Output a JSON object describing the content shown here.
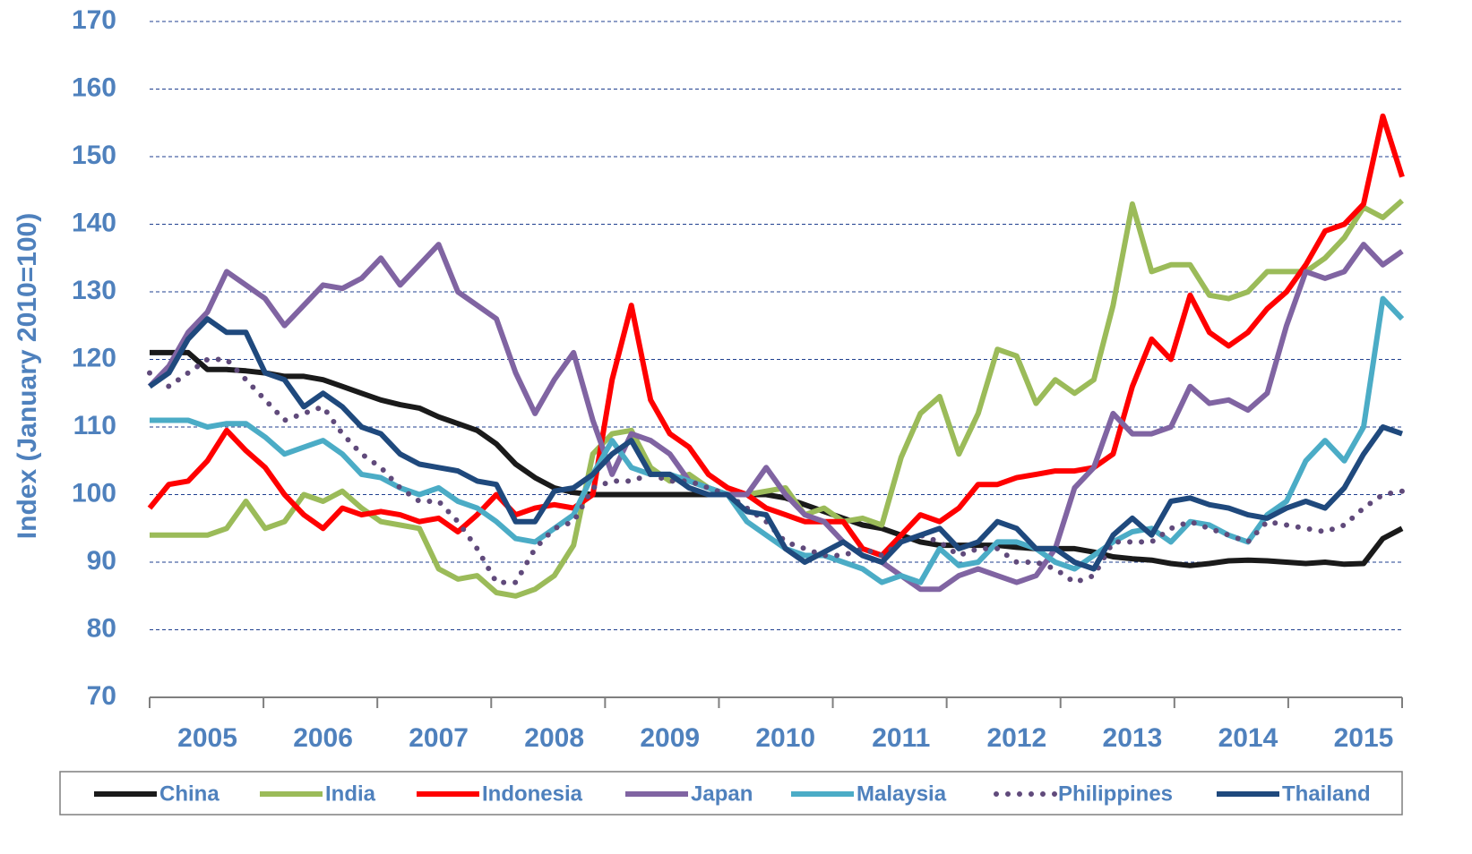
{
  "chart_data": {
    "type": "line",
    "y_label": "Index (January 2010=100)",
    "categories": [
      null,
      null,
      null,
      "2005",
      null,
      null,
      null,
      null,
      null,
      "2006",
      null,
      null,
      null,
      null,
      null,
      "2007",
      null,
      null,
      null,
      null,
      null,
      "2008",
      null,
      null,
      null,
      null,
      null,
      "2009",
      null,
      null,
      null,
      null,
      null,
      "2010",
      null,
      null,
      null,
      null,
      null,
      "2011",
      null,
      null,
      null,
      null,
      null,
      "2012",
      null,
      null,
      null,
      null,
      null,
      "2013",
      null,
      null,
      null,
      null,
      null,
      "2014",
      null,
      null,
      null,
      null,
      null,
      "2015",
      null,
      null
    ],
    "ylim": [
      70,
      170
    ],
    "yticks": [
      70,
      80,
      90,
      100,
      110,
      120,
      130,
      140,
      150,
      160,
      170
    ],
    "grid": true,
    "legend": "bottom",
    "series": [
      {
        "name": "China",
        "color": "#1a1a1a",
        "values": [
          121,
          121,
          121,
          118.5,
          118.5,
          118.3,
          118,
          117.5,
          117.5,
          117,
          116,
          115,
          114,
          113.3,
          112.8,
          111.5,
          110.5,
          109.5,
          107.5,
          104.5,
          102.5,
          101,
          100.3,
          100,
          100,
          100,
          100,
          100,
          100,
          100,
          100,
          100,
          100,
          99.5,
          98.5,
          97.5,
          96.5,
          95.5,
          95,
          94,
          93,
          92.5,
          92.5,
          92.5,
          92.5,
          92.2,
          92,
          92,
          92,
          91.5,
          90.8,
          90.5,
          90.3,
          89.8,
          89.5,
          89.8,
          90.2,
          90.3,
          90.2,
          90,
          89.8,
          90,
          89.7,
          89.8,
          93.5,
          95
        ]
      },
      {
        "name": "India",
        "color": "#9bbb59",
        "values": [
          94,
          94,
          94,
          94,
          95,
          99,
          95,
          96,
          100,
          99,
          100.5,
          98,
          96,
          95.5,
          95,
          89,
          87.5,
          88,
          85.5,
          85,
          86,
          88,
          92.5,
          106,
          109,
          109.5,
          104,
          102,
          103,
          101,
          100,
          100,
          100.5,
          101,
          97,
          98,
          96,
          96.5,
          95.5,
          105.5,
          112,
          114.5,
          106,
          112,
          121.5,
          120.5,
          113.5,
          117,
          115,
          117,
          128,
          143,
          133,
          134,
          134,
          129.5,
          129,
          130,
          133,
          133,
          133,
          135,
          138,
          142.5,
          141,
          143.5
        ]
      },
      {
        "name": "Indonesia",
        "color": "#ff0000",
        "values": [
          98,
          101.5,
          102,
          105,
          109.5,
          106.5,
          104,
          100,
          97,
          95,
          98,
          97,
          97.5,
          97,
          96,
          96.5,
          94.5,
          97,
          100,
          97,
          98,
          98.5,
          98,
          100,
          117,
          128,
          114,
          109,
          107,
          103,
          101,
          100,
          98,
          97,
          96,
          96,
          96,
          92,
          91,
          94,
          97,
          96,
          98,
          101.5,
          101.5,
          102.5,
          103,
          103.5,
          103.5,
          104,
          106,
          116,
          123,
          120,
          129.5,
          124,
          122,
          124,
          127.5,
          130,
          134,
          139,
          140,
          143,
          156,
          147
        ]
      },
      {
        "name": "Japan",
        "color": "#8064a2",
        "values": [
          116,
          119,
          124,
          127,
          133,
          131,
          129,
          125,
          128,
          131,
          130.5,
          132,
          135,
          131,
          134,
          137,
          130,
          128,
          126,
          118,
          112,
          117,
          121,
          111,
          103,
          109,
          108,
          106,
          102,
          101,
          100,
          100,
          104,
          100,
          97,
          96,
          93,
          91,
          90,
          88,
          86,
          86,
          88,
          89,
          88,
          87,
          88,
          92,
          101,
          104,
          112,
          109,
          109,
          110,
          116,
          113.5,
          114,
          112.5,
          115,
          125,
          133,
          132,
          133,
          137,
          134,
          136
        ]
      },
      {
        "name": "Malaysia",
        "color": "#4bacc6",
        "values": [
          111,
          111,
          111,
          110,
          110.5,
          110.5,
          108.5,
          106,
          107,
          108,
          106,
          103,
          102.5,
          101,
          100,
          101,
          99,
          98,
          96,
          93.5,
          93,
          95,
          97,
          103,
          108,
          104,
          103,
          103,
          102,
          101,
          100,
          96,
          94,
          92,
          91,
          91,
          90,
          89,
          87,
          88,
          87,
          92,
          89.5,
          90,
          93,
          93,
          92,
          90,
          89,
          91,
          93,
          94.5,
          95,
          93,
          96,
          95.5,
          94,
          93,
          97,
          99,
          105,
          108,
          105,
          110,
          129,
          126
        ]
      },
      {
        "name": "Philippines",
        "color": "#604a7b",
        "style": "dotted",
        "values": [
          118,
          116,
          118,
          120,
          120,
          117,
          114,
          111,
          112,
          113,
          109,
          106,
          104,
          101,
          99,
          99,
          96,
          92,
          87,
          87,
          92,
          95,
          96,
          101,
          102,
          102,
          103,
          102,
          102,
          101,
          100,
          98,
          96,
          93,
          92,
          91,
          91,
          92,
          91,
          93,
          94,
          93,
          91,
          92,
          92,
          90,
          90,
          89,
          87,
          88,
          93,
          93,
          93,
          95,
          96,
          95,
          94,
          93,
          96,
          95.5,
          95,
          94.5,
          95.5,
          98,
          100,
          100.5
        ]
      },
      {
        "name": "Thailand",
        "color": "#1f497d",
        "values": [
          116,
          118,
          123,
          126,
          124,
          124,
          118,
          117,
          113,
          115,
          113,
          110,
          109,
          106,
          104.5,
          104,
          103.5,
          102,
          101.5,
          96,
          96,
          100.5,
          101,
          103,
          106,
          108,
          103,
          103,
          101,
          100,
          100,
          97.5,
          97,
          92,
          90,
          91.5,
          93,
          91,
          90,
          93,
          94,
          95,
          92,
          93,
          96,
          95,
          92,
          92,
          90,
          89,
          94,
          96.5,
          94,
          99,
          99.5,
          98.5,
          98,
          97,
          96.5,
          98,
          99,
          98,
          101,
          106,
          110,
          109
        ]
      }
    ]
  }
}
